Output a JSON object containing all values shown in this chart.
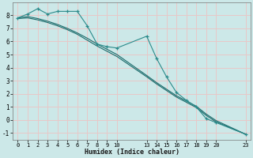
{
  "xlabel": "Humidex (Indice chaleur)",
  "ylabel": "",
  "bg_color": "#cce8e8",
  "grid_color": "#e8c8c8",
  "line_color": "#1a6b6b",
  "line_color2": "#2a8a8a",
  "x_data": [
    0,
    1,
    2,
    3,
    4,
    5,
    6,
    7,
    8,
    9,
    10,
    13,
    14,
    15,
    16,
    17,
    18,
    19,
    20,
    23
  ],
  "y_jagged": [
    7.8,
    8.1,
    8.5,
    8.1,
    8.3,
    8.3,
    8.3,
    7.2,
    5.8,
    5.6,
    5.5,
    6.4,
    4.7,
    3.3,
    2.1,
    1.5,
    1.0,
    0.1,
    -0.2,
    -1.1
  ],
  "y_smooth1": [
    7.8,
    7.9,
    7.75,
    7.55,
    7.3,
    7.0,
    6.65,
    6.25,
    5.8,
    5.4,
    5.0,
    3.4,
    2.85,
    2.35,
    1.85,
    1.45,
    1.05,
    0.45,
    -0.05,
    -1.1
  ],
  "y_smooth2": [
    7.75,
    7.8,
    7.65,
    7.45,
    7.2,
    6.9,
    6.55,
    6.1,
    5.65,
    5.25,
    4.85,
    3.3,
    2.75,
    2.25,
    1.75,
    1.35,
    0.95,
    0.35,
    -0.15,
    -1.1
  ],
  "xticks": [
    0,
    1,
    2,
    3,
    4,
    5,
    6,
    7,
    8,
    9,
    10,
    13,
    14,
    15,
    16,
    17,
    18,
    19,
    20,
    23
  ],
  "yticks": [
    -1,
    0,
    1,
    2,
    3,
    4,
    5,
    6,
    7,
    8
  ],
  "xlim": [
    -0.5,
    23.5
  ],
  "ylim": [
    -1.5,
    9.0
  ]
}
